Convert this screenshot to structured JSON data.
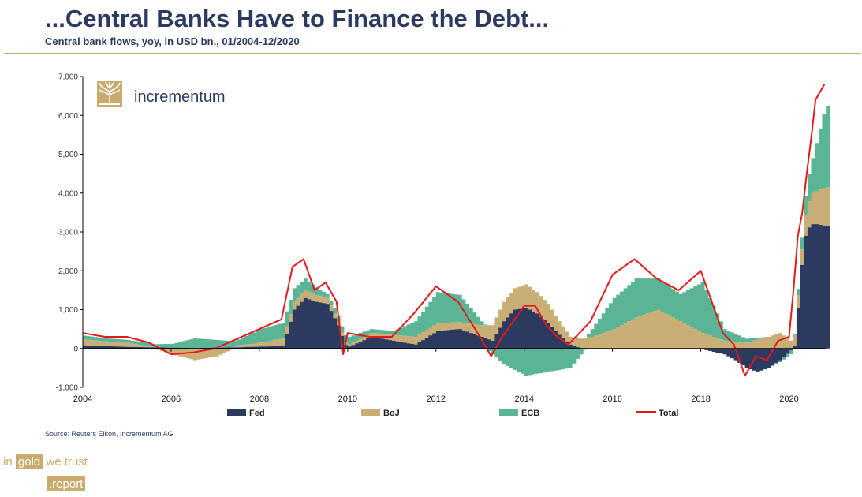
{
  "header": {
    "title": "...Central Banks Have to Finance the Debt...",
    "subtitle": "Central bank flows, yoy, in USD bn., 01/2004-12/2020"
  },
  "brand": {
    "name": "incrementum"
  },
  "footer": {
    "source": "Source: Reuters Eikon, Incrementum AG",
    "igwt_in": "in",
    "igwt_gold": "gold",
    "igwt_we": "we",
    "igwt_trust": "trust",
    "igwt_report": ".report"
  },
  "colors": {
    "fed": "#2b3a5e",
    "boj": "#c9ae76",
    "ecb": "#5ab596",
    "total": "#e01b1b",
    "brand": "#c9ab6f"
  },
  "chart_data": {
    "type": "area",
    "title": "...Central Banks Have to Finance the Debt...",
    "subtitle": "Central bank flows, yoy, in USD bn., 01/2004-12/2020",
    "ylim": [
      -1000,
      7000
    ],
    "yticks": [
      -1000,
      0,
      1000,
      2000,
      3000,
      4000,
      5000,
      6000,
      7000
    ],
    "ytick_labels": [
      "-1,000",
      "0",
      "1,000",
      "2,000",
      "3,000",
      "4,000",
      "5,000",
      "6,000",
      "7,000"
    ],
    "xlim": [
      2004.0,
      2020.83
    ],
    "xticks": [
      2004,
      2006,
      2008,
      2010,
      2012,
      2014,
      2016,
      2018,
      2020
    ],
    "xtick_labels": [
      "2004",
      "2006",
      "2008",
      "2010",
      "2012",
      "2014",
      "2016",
      "2018",
      "2020"
    ],
    "legend_position": "bottom",
    "series": [
      {
        "name": "Fed",
        "x": [
          2004.0,
          2004.5,
          2005.0,
          2005.5,
          2006.0,
          2006.5,
          2007.0,
          2007.5,
          2008.0,
          2008.5,
          2008.75,
          2009.0,
          2009.25,
          2009.5,
          2009.75,
          2009.9,
          2010.0,
          2010.5,
          2011.0,
          2011.5,
          2012.0,
          2012.5,
          2013.0,
          2013.25,
          2013.5,
          2013.75,
          2014.0,
          2014.25,
          2014.5,
          2014.75,
          2015.0,
          2015.25,
          2015.5,
          2016.0,
          2016.5,
          2017.0,
          2017.5,
          2018.0,
          2018.5,
          2018.75,
          2019.0,
          2019.25,
          2019.5,
          2019.75,
          2020.0,
          2020.1,
          2020.2,
          2020.3,
          2020.4,
          2020.5,
          2020.6,
          2020.8
        ],
        "values": [
          80,
          60,
          40,
          30,
          20,
          10,
          20,
          30,
          50,
          60,
          1000,
          1300,
          1200,
          1150,
          600,
          100,
          50,
          300,
          200,
          100,
          450,
          500,
          300,
          200,
          700,
          1000,
          1050,
          900,
          650,
          350,
          100,
          0,
          0,
          0,
          0,
          -20,
          -20,
          -20,
          -150,
          -300,
          -500,
          -600,
          -500,
          -300,
          -50,
          100,
          1500,
          2800,
          3100,
          3200,
          3200,
          3150
        ]
      },
      {
        "name": "BoJ",
        "x": [
          2004.0,
          2004.5,
          2005.0,
          2005.5,
          2006.0,
          2006.5,
          2007.0,
          2007.5,
          2008.0,
          2008.5,
          2009.0,
          2009.5,
          2010.0,
          2010.5,
          2011.0,
          2011.5,
          2012.0,
          2012.5,
          2013.0,
          2013.5,
          2014.0,
          2014.5,
          2015.0,
          2015.5,
          2016.0,
          2016.5,
          2017.0,
          2017.5,
          2018.0,
          2018.5,
          2019.0,
          2019.5,
          2019.75,
          2020.0,
          2020.25,
          2020.5,
          2020.8
        ],
        "values": [
          150,
          120,
          100,
          20,
          -150,
          -300,
          -200,
          50,
          100,
          200,
          200,
          150,
          50,
          100,
          150,
          200,
          200,
          180,
          300,
          500,
          600,
          500,
          200,
          300,
          500,
          800,
          1000,
          700,
          400,
          200,
          150,
          300,
          400,
          200,
          400,
          800,
          1000
        ]
      },
      {
        "name": "ECB",
        "x": [
          2004.0,
          2004.5,
          2005.0,
          2005.5,
          2006.0,
          2006.5,
          2007.0,
          2007.5,
          2008.0,
          2008.5,
          2009.0,
          2009.5,
          2010.0,
          2010.5,
          2011.0,
          2011.5,
          2012.0,
          2012.5,
          2013.0,
          2013.5,
          2014.0,
          2014.5,
          2015.0,
          2015.5,
          2016.0,
          2016.5,
          2017.0,
          2017.5,
          2018.0,
          2018.5,
          2019.0,
          2019.5,
          2020.0,
          2020.25,
          2020.5,
          2020.8
        ],
        "values": [
          100,
          80,
          80,
          80,
          100,
          250,
          200,
          150,
          350,
          400,
          300,
          100,
          200,
          100,
          100,
          400,
          800,
          700,
          100,
          -400,
          -700,
          -600,
          -500,
          200,
          800,
          1000,
          800,
          700,
          1300,
          300,
          100,
          0,
          -100,
          300,
          900,
          2100
        ]
      },
      {
        "name": "Total",
        "x": [
          2004.0,
          2004.5,
          2005.0,
          2005.5,
          2006.0,
          2006.5,
          2007.0,
          2007.5,
          2008.0,
          2008.5,
          2008.75,
          2009.0,
          2009.25,
          2009.5,
          2009.75,
          2009.9,
          2010.0,
          2010.5,
          2011.0,
          2011.5,
          2012.0,
          2012.5,
          2013.0,
          2013.25,
          2013.5,
          2013.75,
          2014.0,
          2014.25,
          2014.5,
          2014.75,
          2015.0,
          2015.5,
          2016.0,
          2016.5,
          2017.0,
          2017.5,
          2018.0,
          2018.5,
          2018.75,
          2019.0,
          2019.25,
          2019.5,
          2019.75,
          2020.0,
          2020.1,
          2020.2,
          2020.3,
          2020.4,
          2020.5,
          2020.6,
          2020.8
        ],
        "values": [
          400,
          300,
          300,
          150,
          -150,
          -100,
          0,
          250,
          500,
          750,
          2100,
          2300,
          1500,
          1700,
          1200,
          -150,
          400,
          300,
          300,
          900,
          1600,
          1200,
          300,
          -200,
          300,
          700,
          1100,
          1100,
          600,
          300,
          100,
          700,
          1900,
          2300,
          1800,
          1500,
          2000,
          400,
          100,
          -700,
          -200,
          -300,
          200,
          300,
          1500,
          2900,
          3500,
          4500,
          5400,
          6400,
          6800
        ]
      }
    ]
  }
}
